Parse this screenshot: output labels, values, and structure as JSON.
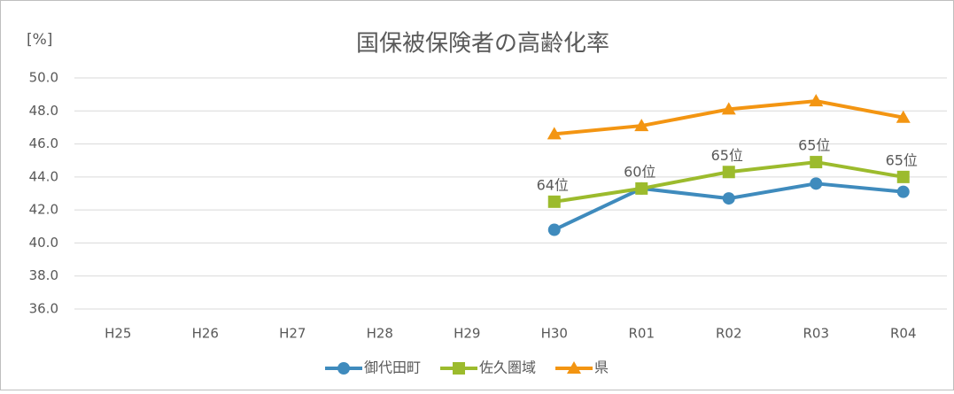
{
  "chart_data": {
    "type": "line",
    "title": "国保被保険者の高齢化率",
    "y_unit": "[%]",
    "categories": [
      "H25",
      "H26",
      "H27",
      "H28",
      "H29",
      "H30",
      "R01",
      "R02",
      "R03",
      "R04"
    ],
    "series": [
      {
        "name": "御代田町",
        "color": "#3f8bbd",
        "marker": "circle",
        "values": [
          null,
          null,
          null,
          null,
          null,
          40.8,
          43.3,
          42.7,
          43.6,
          43.1
        ]
      },
      {
        "name": "佐久圏域",
        "color": "#9cbb2d",
        "marker": "square",
        "values": [
          null,
          null,
          null,
          null,
          null,
          42.5,
          43.3,
          44.3,
          44.9,
          44.0
        ]
      },
      {
        "name": "県",
        "color": "#f39512",
        "marker": "triangle",
        "values": [
          null,
          null,
          null,
          null,
          null,
          46.6,
          47.1,
          48.1,
          48.6,
          47.6
        ]
      }
    ],
    "annotations": [
      {
        "category": "H30",
        "text": "64位"
      },
      {
        "category": "R01",
        "text": "60位"
      },
      {
        "category": "R02",
        "text": "65位"
      },
      {
        "category": "R03",
        "text": "65位"
      },
      {
        "category": "R04",
        "text": "65位"
      }
    ],
    "ylim": [
      36,
      50
    ],
    "yticks": [
      {
        "value": 36,
        "label": "36.0"
      },
      {
        "value": 38,
        "label": "38.0"
      },
      {
        "value": 40,
        "label": "40.0"
      },
      {
        "value": 42,
        "label": "42.0"
      },
      {
        "value": 44,
        "label": "44.0"
      },
      {
        "value": 46,
        "label": "46.0"
      },
      {
        "value": 48,
        "label": "48.0"
      },
      {
        "value": 50,
        "label": "50.0"
      }
    ],
    "grid": true,
    "legend": "bottom"
  }
}
